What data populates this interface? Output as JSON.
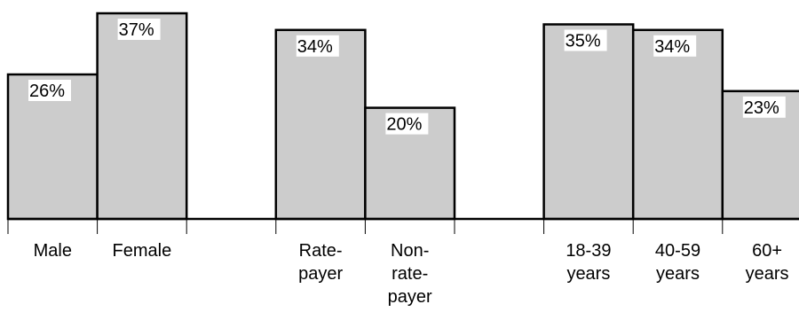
{
  "chart_data": {
    "type": "bar",
    "ylim": [
      0,
      40
    ],
    "grid": false,
    "legend": "none",
    "bar_color": "#cccccc",
    "categories": [
      [
        "Male"
      ],
      [
        "Female"
      ],
      [],
      [
        "Rate-",
        "payer"
      ],
      [
        "Non-",
        "rate-",
        "payer"
      ],
      [],
      [
        "18-39",
        "years"
      ],
      [
        "40-59",
        "years"
      ],
      [
        "60+",
        "years"
      ]
    ],
    "values": [
      26,
      37,
      null,
      34,
      20,
      null,
      35,
      34,
      23
    ],
    "value_labels": [
      "26%",
      "37%",
      "",
      "34%",
      "20%",
      "",
      "35%",
      "34%",
      "23%"
    ]
  }
}
